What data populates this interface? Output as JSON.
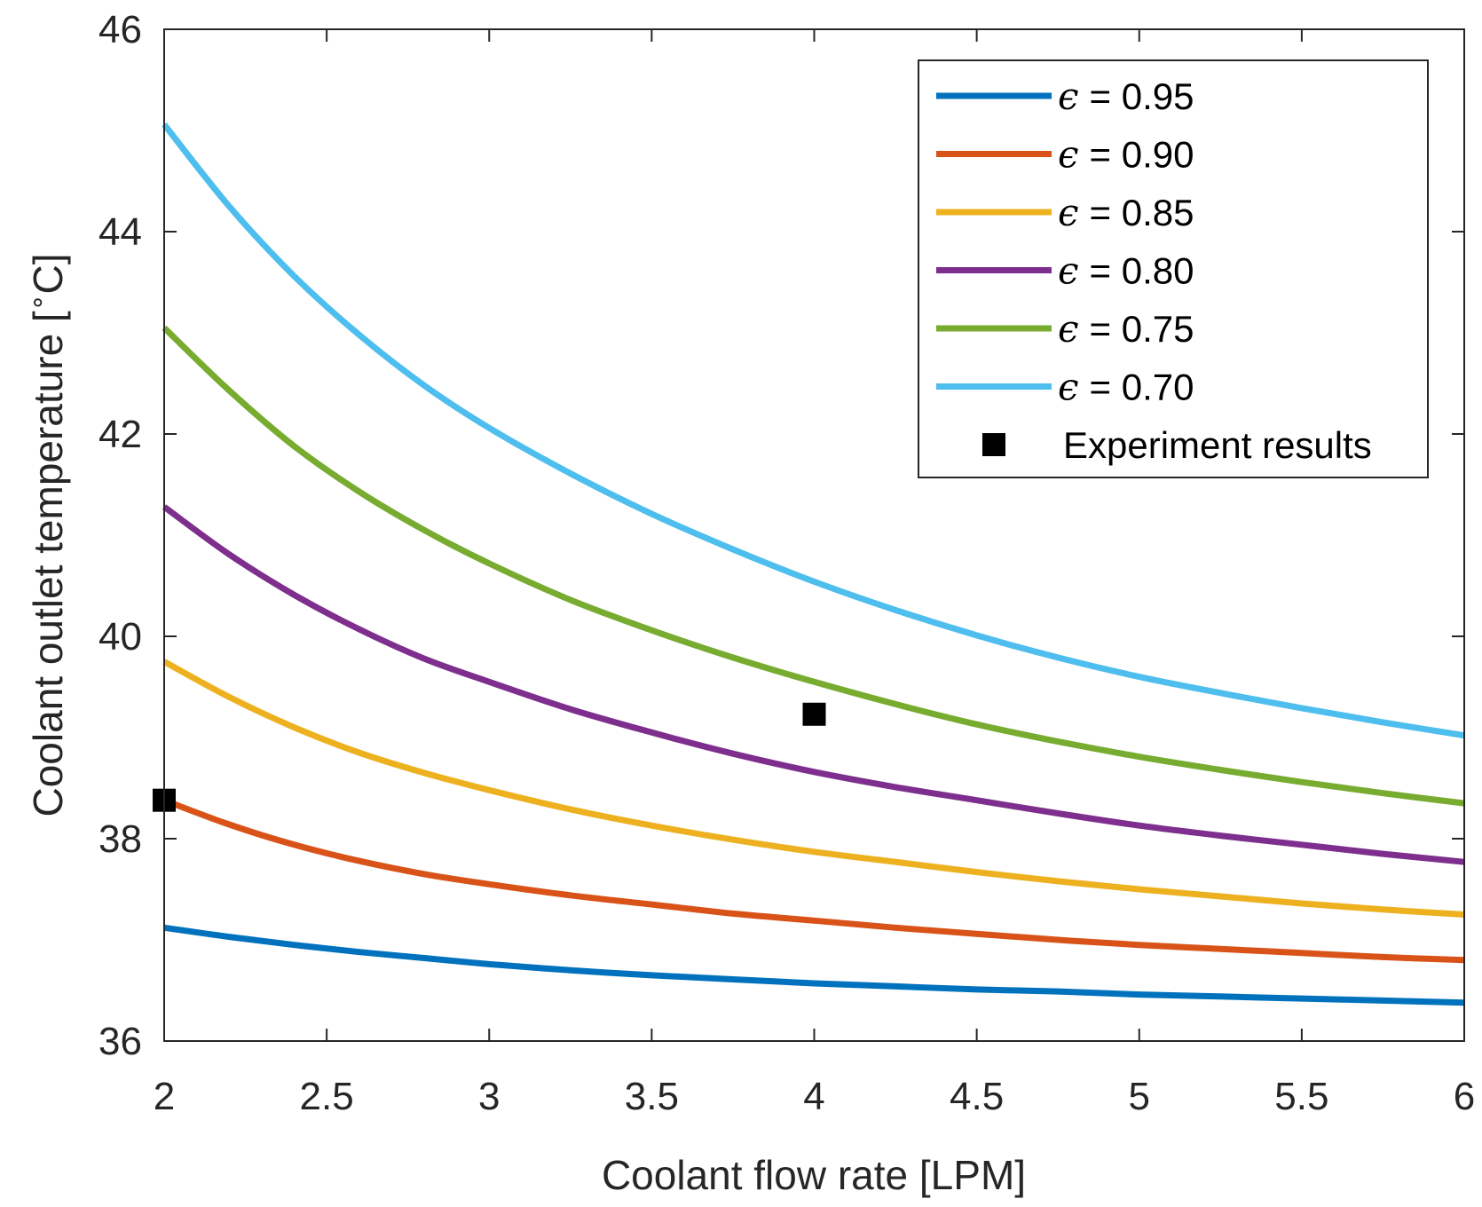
{
  "chart_data": {
    "type": "line",
    "title": "",
    "xlabel": "Coolant flow rate [LPM]",
    "ylabel": "Coolant outlet temperature [",
    "ylabel_unit": "C]",
    "ylabel_degree": "∘",
    "xlim": [
      2,
      6
    ],
    "ylim": [
      36,
      46
    ],
    "xticks": [
      2,
      2.5,
      3,
      3.5,
      4,
      4.5,
      5,
      5.5,
      6
    ],
    "xtick_labels": [
      "2",
      "2.5",
      "3",
      "3.5",
      "4",
      "4.5",
      "5",
      "5.5",
      "6"
    ],
    "yticks": [
      36,
      38,
      40,
      42,
      44,
      46
    ],
    "ytick_labels": [
      "36",
      "38",
      "40",
      "42",
      "44",
      "46"
    ],
    "grid": false,
    "legend_position": "top-right",
    "legend_symbol": "ϵ",
    "x": [
      2.0,
      2.2,
      2.4,
      2.6,
      2.8,
      3.0,
      3.25,
      3.5,
      3.75,
      4.0,
      4.25,
      4.5,
      4.75,
      5.0,
      5.25,
      5.5,
      5.75,
      6.0
    ],
    "series": [
      {
        "name": "ϵ = 0.95",
        "label_value": "= 0.95",
        "color": "#0072BD",
        "values": [
          37.12,
          37.03,
          36.95,
          36.88,
          36.82,
          36.76,
          36.7,
          36.65,
          36.61,
          36.57,
          36.54,
          36.51,
          36.49,
          36.46,
          36.44,
          36.42,
          36.4,
          36.38
        ]
      },
      {
        "name": "ϵ = 0.90",
        "label_value": "= 0.90",
        "color": "#D95319",
        "values": [
          38.38,
          38.14,
          37.94,
          37.78,
          37.65,
          37.55,
          37.44,
          37.35,
          37.26,
          37.19,
          37.12,
          37.06,
          37.0,
          36.95,
          36.91,
          36.87,
          36.83,
          36.8
        ]
      },
      {
        "name": "ϵ = 0.85",
        "label_value": "= 0.85",
        "color": "#EDB120",
        "values": [
          39.75,
          39.4,
          39.1,
          38.85,
          38.65,
          38.48,
          38.29,
          38.13,
          37.99,
          37.87,
          37.77,
          37.67,
          37.58,
          37.5,
          37.43,
          37.36,
          37.3,
          37.25
        ]
      },
      {
        "name": "ϵ = 0.80",
        "label_value": "= 0.80",
        "color": "#7E2F8E",
        "values": [
          41.28,
          40.81,
          40.41,
          40.07,
          39.78,
          39.55,
          39.28,
          39.05,
          38.84,
          38.66,
          38.51,
          38.38,
          38.25,
          38.13,
          38.03,
          37.94,
          37.85,
          37.77
        ]
      },
      {
        "name": "ϵ = 0.75",
        "label_value": "= 0.75",
        "color": "#77AC30",
        "values": [
          43.05,
          42.43,
          41.88,
          41.43,
          41.05,
          40.72,
          40.36,
          40.06,
          39.79,
          39.55,
          39.33,
          39.13,
          38.96,
          38.81,
          38.68,
          38.56,
          38.45,
          38.35
        ]
      },
      {
        "name": "ϵ = 0.70",
        "label_value": "= 0.70",
        "color": "#4DBEEE",
        "values": [
          45.06,
          44.25,
          43.56,
          42.98,
          42.48,
          42.06,
          41.61,
          41.21,
          40.86,
          40.54,
          40.26,
          40.01,
          39.79,
          39.6,
          39.44,
          39.29,
          39.15,
          39.02
        ]
      }
    ],
    "markers": {
      "name": "Experiment results",
      "color": "#000000",
      "points": [
        {
          "x": 2.0,
          "y": 38.38
        },
        {
          "x": 4.0,
          "y": 39.23
        }
      ]
    }
  }
}
